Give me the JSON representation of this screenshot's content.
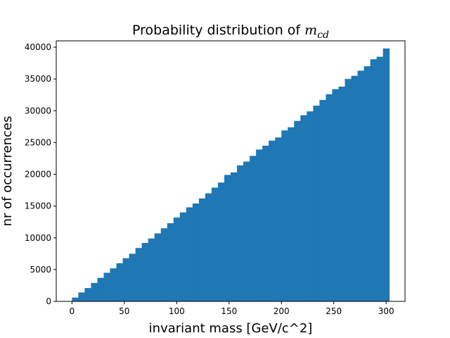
{
  "chart_data": {
    "type": "bar",
    "title": "Probability distribution of ",
    "title_math": "m",
    "title_math_sub": "cd",
    "xlabel": "invariant mass [GeV/c^2]",
    "ylabel": "nr of occurrences",
    "xlim": [
      -15,
      318
    ],
    "ylim": [
      0,
      41000
    ],
    "xticks": [
      0,
      50,
      100,
      150,
      200,
      250,
      300
    ],
    "yticks": [
      0,
      5000,
      10000,
      15000,
      20000,
      25000,
      30000,
      35000,
      40000
    ],
    "bin_start": 0,
    "bin_width": 6.06,
    "color": "#1f77b4",
    "grid": false,
    "values": [
      600,
      1400,
      2100,
      2900,
      3700,
      4500,
      5200,
      6000,
      6800,
      7500,
      8400,
      9200,
      9900,
      10700,
      11500,
      12300,
      13200,
      14000,
      14800,
      15400,
      16200,
      17000,
      17900,
      18700,
      19900,
      20300,
      21400,
      22000,
      22900,
      23900,
      24500,
      25300,
      25800,
      26900,
      27400,
      28400,
      29300,
      29900,
      30800,
      31700,
      32600,
      33400,
      33800,
      35000,
      35500,
      36300,
      37000,
      38100,
      38500,
      39800
    ]
  }
}
